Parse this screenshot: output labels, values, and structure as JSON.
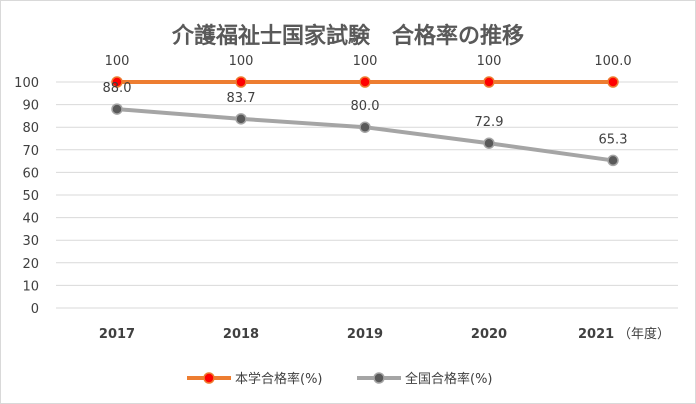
{
  "chart_data": {
    "type": "line",
    "title": "介護福祉士国家試験　合格率の推移",
    "xlabel": "",
    "ylabel": "",
    "categories": [
      "2017",
      "2018",
      "2019",
      "2020",
      "2021"
    ],
    "x_unit_note": "（年度）",
    "ylim": [
      0,
      100
    ],
    "yticks": [
      "0",
      "10",
      "20",
      "30",
      "40",
      "50",
      "60",
      "70",
      "80",
      "90",
      "100"
    ],
    "grid": true,
    "legend_position": "bottom",
    "series": [
      {
        "name": "本学合格率(%)",
        "color": "#ED7D31",
        "marker_color": "#FF0000",
        "values": [
          100,
          100,
          100,
          100,
          100.0
        ],
        "labels": [
          "100",
          "100",
          "100",
          "100",
          "100.0"
        ]
      },
      {
        "name": "全国合格率(%)",
        "color": "#A5A5A5",
        "marker_color": "#595959",
        "values": [
          88.0,
          83.7,
          80.0,
          72.9,
          65.3
        ],
        "labels": [
          "88.0",
          "83.7",
          "80.0",
          "72.9",
          "65.3"
        ]
      }
    ]
  }
}
